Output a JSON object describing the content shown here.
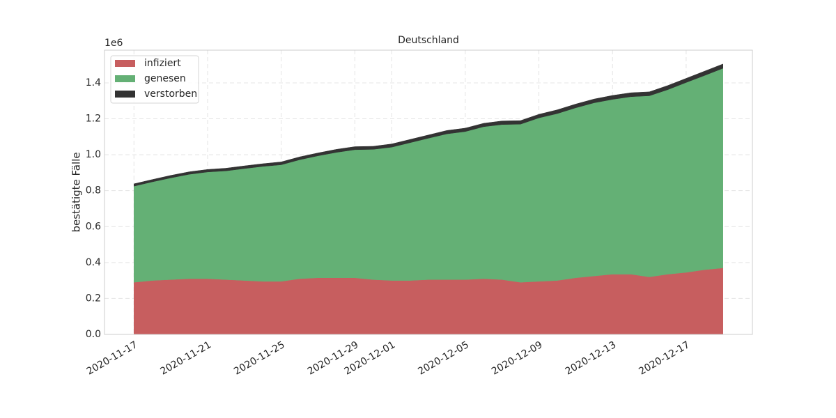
{
  "chart_data": {
    "type": "stacked_area",
    "title": "Deutschland",
    "ylabel": "bestätigte Fälle",
    "y_offset_label": "1e6",
    "x": [
      "2020-11-17",
      "2020-11-18",
      "2020-11-19",
      "2020-11-20",
      "2020-11-21",
      "2020-11-22",
      "2020-11-23",
      "2020-11-24",
      "2020-11-25",
      "2020-11-26",
      "2020-11-27",
      "2020-11-28",
      "2020-11-29",
      "2020-11-30",
      "2020-12-01",
      "2020-12-02",
      "2020-12-03",
      "2020-12-04",
      "2020-12-05",
      "2020-12-06",
      "2020-12-07",
      "2020-12-08",
      "2020-12-09",
      "2020-12-10",
      "2020-12-11",
      "2020-12-12",
      "2020-12-13",
      "2020-12-14",
      "2020-12-15",
      "2020-12-16",
      "2020-12-17",
      "2020-12-18",
      "2020-12-19"
    ],
    "series": [
      {
        "name": "infiziert",
        "color": "#c75e5f",
        "values": [
          0.29,
          0.3,
          0.305,
          0.31,
          0.31,
          0.305,
          0.3,
          0.295,
          0.295,
          0.31,
          0.315,
          0.315,
          0.315,
          0.305,
          0.3,
          0.3,
          0.305,
          0.305,
          0.305,
          0.31,
          0.305,
          0.29,
          0.295,
          0.3,
          0.315,
          0.325,
          0.335,
          0.335,
          0.32,
          0.335,
          0.345,
          0.36,
          0.37
        ]
      },
      {
        "name": "genesen",
        "color": "#64b075",
        "values": [
          0.535,
          0.549,
          0.566,
          0.581,
          0.594,
          0.605,
          0.623,
          0.64,
          0.649,
          0.662,
          0.679,
          0.698,
          0.713,
          0.725,
          0.742,
          0.767,
          0.787,
          0.811,
          0.824,
          0.846,
          0.863,
          0.88,
          0.91,
          0.929,
          0.946,
          0.964,
          0.973,
          0.988,
          1.008,
          1.027,
          1.057,
          1.081,
          1.111
        ]
      },
      {
        "name": "verstorben",
        "color": "#333333",
        "values": [
          0.013,
          0.013,
          0.014,
          0.014,
          0.014,
          0.015,
          0.015,
          0.015,
          0.016,
          0.016,
          0.016,
          0.017,
          0.017,
          0.017,
          0.018,
          0.018,
          0.018,
          0.019,
          0.019,
          0.019,
          0.02,
          0.02,
          0.02,
          0.021,
          0.021,
          0.021,
          0.022,
          0.022,
          0.022,
          0.023,
          0.023,
          0.024,
          0.024
        ]
      }
    ],
    "xticks": [
      "2020-11-17",
      "2020-11-21",
      "2020-11-25",
      "2020-11-29",
      "2020-12-01",
      "2020-12-05",
      "2020-12-09",
      "2020-12-13",
      "2020-12-17"
    ],
    "ylim": [
      0,
      1.582
    ],
    "yticks": [
      {
        "value": 0,
        "label": "0.0"
      },
      {
        "value": 0.2,
        "label": "0.2"
      },
      {
        "value": 0.4,
        "label": "0.4"
      },
      {
        "value": 0.6,
        "label": "0.6"
      },
      {
        "value": 0.8,
        "label": "0.8"
      },
      {
        "value": 1,
        "label": "1.0"
      },
      {
        "value": 1.2,
        "label": "1.2"
      },
      {
        "value": 1.4,
        "label": "1.4"
      }
    ],
    "grid": true,
    "legend": "upper left"
  }
}
